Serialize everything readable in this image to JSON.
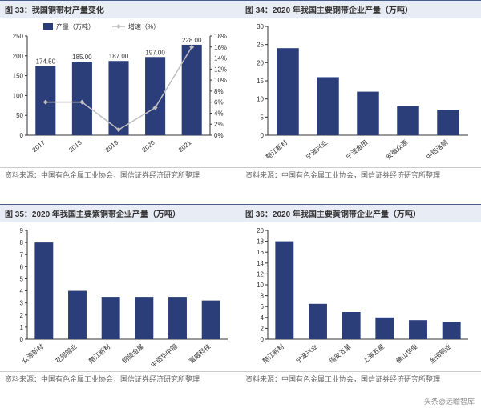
{
  "panels": [
    {
      "id": "c33",
      "title": "图 33：我国铜带材产量变化",
      "source": "资料来源：中国有色金属工业协会，国信证券经济研究所整理",
      "type": "bar+line",
      "categories": [
        "2017",
        "2018",
        "2019",
        "2020",
        "2021"
      ],
      "bar": {
        "label": "产量（万吨）",
        "values": [
          174.5,
          185.0,
          187.0,
          197.0,
          228.0
        ],
        "color": "#2b3e7a",
        "ylim": [
          0,
          250
        ],
        "ytick": 50,
        "dlabels": [
          "174.50",
          "185.00",
          "187.00",
          "197.00",
          "228.00"
        ]
      },
      "line": {
        "label": "增速（%）",
        "values": [
          6,
          6,
          1,
          5,
          16
        ],
        "color": "#bfbfbf",
        "ylim": [
          0,
          18
        ],
        "ytick": 2,
        "marker": "diamond"
      },
      "bg": "#ffffff"
    },
    {
      "id": "c34",
      "title": "图 34：2020 年我国主要铜带企业产量（万吨）",
      "source": "资料来源：中国有色金属工业协会，国信证券经济研究所整理",
      "type": "bar",
      "categories": [
        "楚江新材",
        "宁波兴业",
        "宁波金田",
        "安徽众源",
        "中铝洛铜"
      ],
      "bar": {
        "values": [
          24,
          16,
          12,
          8,
          7
        ],
        "color": "#2b3e7a",
        "ylim": [
          0,
          30
        ],
        "ytick": 5
      },
      "bg": "#ffffff"
    },
    {
      "id": "c35",
      "title": "图 35：2020 年我国主要紫铜带企业产量（万吨）",
      "source": "资料来源：中国有色金属工业协会，国信证券经济研究所整理",
      "type": "bar",
      "categories": [
        "众源新材",
        "花园铜业",
        "楚江新材",
        "铜陵金属",
        "中铝华中铜",
        "富威科技"
      ],
      "bar": {
        "values": [
          8,
          4,
          3.5,
          3.5,
          3.5,
          3.2
        ],
        "color": "#2b3e7a",
        "ylim": [
          0,
          9
        ],
        "ytick": 1
      },
      "bg": "#ffffff"
    },
    {
      "id": "c36",
      "title": "图 36：2020 年我国主要黄铜带企业产量（万吨）",
      "source": "资料来源：中国有色金属工业协会，国信证券经济研究所整理",
      "type": "bar",
      "categories": [
        "楚江新材",
        "宁波兴业",
        "瑞安五星",
        "上海五星",
        "佛山华俊",
        "金田铜业"
      ],
      "bar": {
        "values": [
          18,
          6.5,
          5,
          4,
          3.5,
          3.2
        ],
        "color": "#2b3e7a",
        "ylim": [
          0,
          20
        ],
        "ytick": 2
      },
      "bg": "#ffffff"
    }
  ],
  "watermark": "头条@远瞻智库"
}
